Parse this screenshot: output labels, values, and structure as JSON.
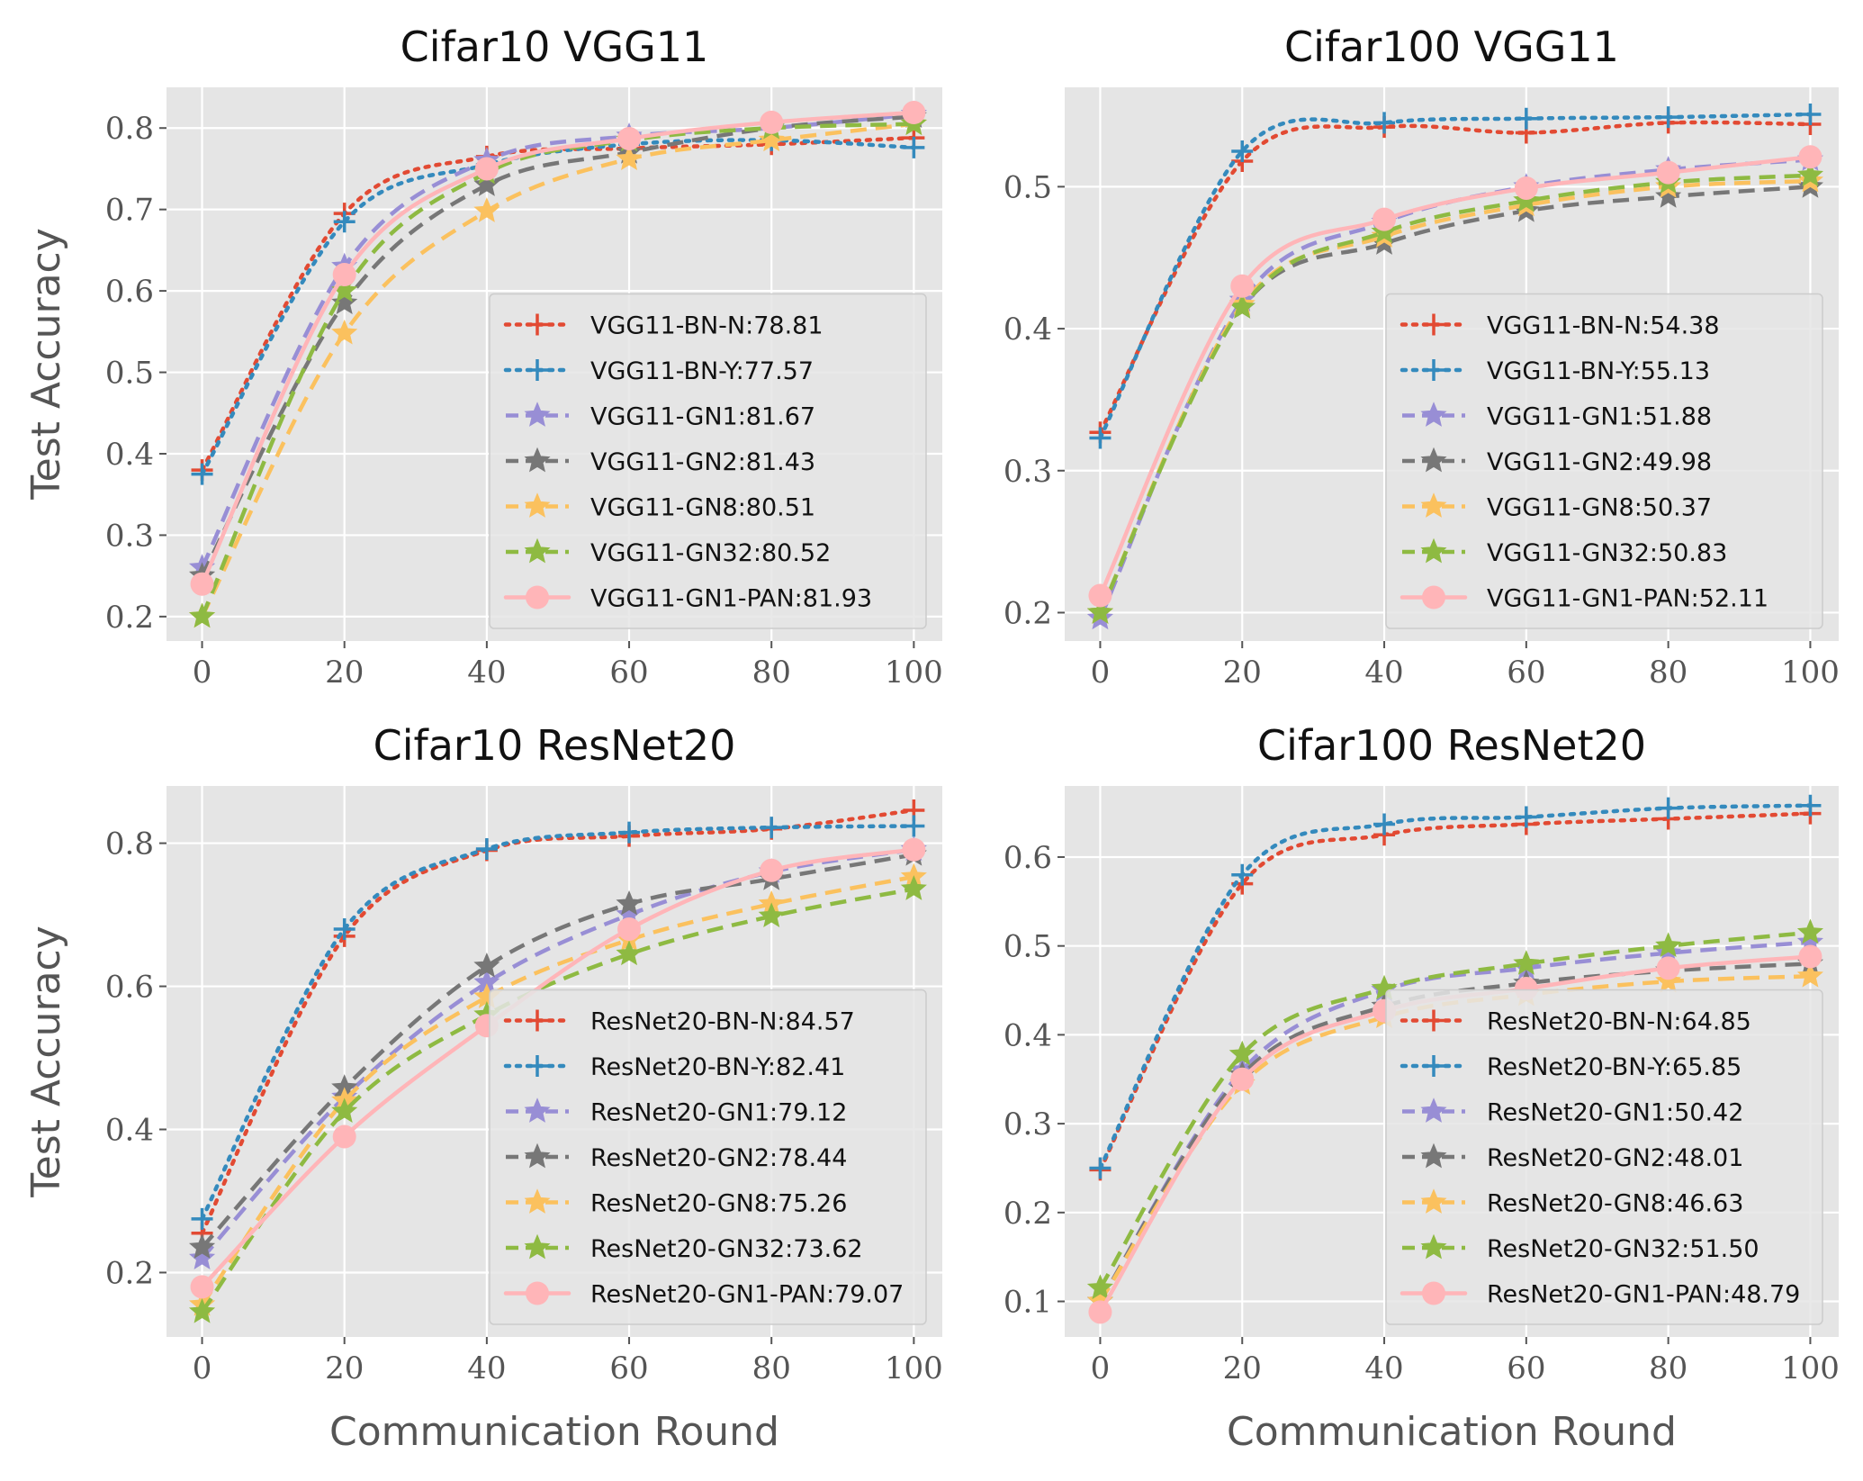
{
  "colors": {
    "BN-N": "#E24A33",
    "BN-Y": "#348ABD",
    "GN1": "#988ED5",
    "GN2": "#777777",
    "GN8": "#FBC15E",
    "GN32": "#8EBA42",
    "GN1-PAN": "#FFB5B8",
    "plot_background": "#E5E5E5",
    "grid": "#FFFFFF"
  },
  "chart_data": [
    {
      "type": "line",
      "title": "Cifar10 VGG11",
      "xlabel": "",
      "ylabel": "Test Accuracy",
      "xlim": [
        -5,
        104
      ],
      "ylim": [
        0.17,
        0.85
      ],
      "xticks": [
        0,
        20,
        40,
        60,
        80,
        100
      ],
      "xtick_labels": [
        "0",
        "20",
        "40",
        "60",
        "80",
        "100"
      ],
      "yticks": [
        0.2,
        0.3,
        0.4,
        0.5,
        0.6,
        0.7,
        0.8
      ],
      "ytick_labels": [
        "0.2",
        "0.3",
        "0.4",
        "0.5",
        "0.6",
        "0.7",
        "0.8"
      ],
      "grid": true,
      "legend_position": "lower-right",
      "x": [
        0,
        20,
        40,
        60,
        80,
        100
      ],
      "series": [
        {
          "name": "VGG11-BN-N:78.81",
          "key": "BN-N",
          "values": [
            0.38,
            0.695,
            0.765,
            0.775,
            0.78,
            0.788
          ]
        },
        {
          "name": "VGG11-BN-Y:77.57",
          "key": "BN-Y",
          "values": [
            0.375,
            0.685,
            0.755,
            0.78,
            0.785,
            0.776
          ]
        },
        {
          "name": "VGG11-GN1:81.67",
          "key": "GN1",
          "values": [
            0.26,
            0.63,
            0.76,
            0.79,
            0.8,
            0.817
          ]
        },
        {
          "name": "VGG11-GN2:81.43",
          "key": "GN2",
          "values": [
            0.25,
            0.585,
            0.73,
            0.77,
            0.8,
            0.814
          ]
        },
        {
          "name": "VGG11-GN8:80.51",
          "key": "GN8",
          "values": [
            0.2,
            0.548,
            0.698,
            0.762,
            0.785,
            0.805
          ]
        },
        {
          "name": "VGG11-GN32:80.52",
          "key": "GN32",
          "values": [
            0.2,
            0.6,
            0.745,
            0.785,
            0.8,
            0.805
          ]
        },
        {
          "name": "VGG11-GN1-PAN:81.93",
          "key": "GN1-PAN",
          "values": [
            0.24,
            0.62,
            0.75,
            0.787,
            0.807,
            0.819
          ]
        }
      ]
    },
    {
      "type": "line",
      "title": "Cifar100 VGG11",
      "xlabel": "",
      "ylabel": "",
      "xlim": [
        -5,
        104
      ],
      "ylim": [
        0.18,
        0.57
      ],
      "xticks": [
        0,
        20,
        40,
        60,
        80,
        100
      ],
      "xtick_labels": [
        "0",
        "20",
        "40",
        "60",
        "80",
        "100"
      ],
      "yticks": [
        0.2,
        0.3,
        0.4,
        0.5
      ],
      "ytick_labels": [
        "0.2",
        "0.3",
        "0.4",
        "0.5"
      ],
      "grid": true,
      "legend_position": "lower-right",
      "x": [
        0,
        20,
        40,
        60,
        80,
        100
      ],
      "series": [
        {
          "name": "VGG11-BN-N:54.38",
          "key": "BN-N",
          "values": [
            0.327,
            0.518,
            0.542,
            0.538,
            0.545,
            0.544
          ]
        },
        {
          "name": "VGG11-BN-Y:55.13",
          "key": "BN-Y",
          "values": [
            0.323,
            0.525,
            0.545,
            0.548,
            0.549,
            0.551
          ]
        },
        {
          "name": "VGG11-GN1:51.88",
          "key": "GN1",
          "values": [
            0.196,
            0.42,
            0.475,
            0.5,
            0.512,
            0.519
          ]
        },
        {
          "name": "VGG11-GN2:49.98",
          "key": "GN2",
          "values": [
            0.2,
            0.415,
            0.46,
            0.483,
            0.493,
            0.5
          ]
        },
        {
          "name": "VGG11-GN8:50.37",
          "key": "GN8",
          "values": [
            0.2,
            0.417,
            0.465,
            0.487,
            0.5,
            0.504
          ]
        },
        {
          "name": "VGG11-GN32:50.83",
          "key": "GN32",
          "values": [
            0.2,
            0.415,
            0.468,
            0.49,
            0.503,
            0.508
          ]
        },
        {
          "name": "VGG11-GN1-PAN:52.11",
          "key": "GN1-PAN",
          "values": [
            0.212,
            0.43,
            0.477,
            0.499,
            0.51,
            0.521
          ]
        }
      ]
    },
    {
      "type": "line",
      "title": "Cifar10 ResNet20",
      "xlabel": "Communication Round",
      "ylabel": "Test Accuracy",
      "xlim": [
        -5,
        104
      ],
      "ylim": [
        0.11,
        0.88
      ],
      "xticks": [
        0,
        20,
        40,
        60,
        80,
        100
      ],
      "xtick_labels": [
        "0",
        "20",
        "40",
        "60",
        "80",
        "100"
      ],
      "yticks": [
        0.2,
        0.4,
        0.6,
        0.8
      ],
      "ytick_labels": [
        "0.2",
        "0.4",
        "0.6",
        "0.8"
      ],
      "grid": true,
      "legend_position": "lower-right",
      "x": [
        0,
        20,
        40,
        60,
        80,
        100
      ],
      "series": [
        {
          "name": "ResNet20-BN-N:84.57",
          "key": "BN-N",
          "values": [
            0.255,
            0.67,
            0.79,
            0.81,
            0.82,
            0.846
          ]
        },
        {
          "name": "ResNet20-BN-Y:82.41",
          "key": "BN-Y",
          "values": [
            0.275,
            0.68,
            0.792,
            0.815,
            0.822,
            0.824
          ]
        },
        {
          "name": "ResNet20-GN1:79.12",
          "key": "GN1",
          "values": [
            0.22,
            0.445,
            0.605,
            0.7,
            0.76,
            0.791
          ]
        },
        {
          "name": "ResNet20-GN2:78.44",
          "key": "GN2",
          "values": [
            0.235,
            0.458,
            0.628,
            0.715,
            0.75,
            0.784
          ]
        },
        {
          "name": "ResNet20-GN8:75.26",
          "key": "GN8",
          "values": [
            0.155,
            0.44,
            0.585,
            0.665,
            0.715,
            0.753
          ]
        },
        {
          "name": "ResNet20-GN32:73.62",
          "key": "GN32",
          "values": [
            0.145,
            0.425,
            0.56,
            0.645,
            0.698,
            0.736
          ]
        },
        {
          "name": "ResNet20-GN1-PAN:79.07",
          "key": "GN1-PAN",
          "values": [
            0.18,
            0.39,
            0.545,
            0.68,
            0.762,
            0.791
          ]
        }
      ]
    },
    {
      "type": "line",
      "title": "Cifar100 ResNet20",
      "xlabel": "Communication Round",
      "ylabel": "",
      "xlim": [
        -5,
        104
      ],
      "ylim": [
        0.06,
        0.68
      ],
      "xticks": [
        0,
        20,
        40,
        60,
        80,
        100
      ],
      "xtick_labels": [
        "0",
        "20",
        "40",
        "60",
        "80",
        "100"
      ],
      "yticks": [
        0.1,
        0.2,
        0.3,
        0.4,
        0.5,
        0.6
      ],
      "ytick_labels": [
        "0.1",
        "0.2",
        "0.3",
        "0.4",
        "0.5",
        "0.6"
      ],
      "grid": true,
      "legend_position": "lower-right",
      "x": [
        0,
        20,
        40,
        60,
        80,
        100
      ],
      "series": [
        {
          "name": "ResNet20-BN-N:64.85",
          "key": "BN-N",
          "values": [
            0.248,
            0.57,
            0.625,
            0.637,
            0.643,
            0.649
          ]
        },
        {
          "name": "ResNet20-BN-Y:65.85",
          "key": "BN-Y",
          "values": [
            0.25,
            0.58,
            0.637,
            0.645,
            0.655,
            0.658
          ]
        },
        {
          "name": "ResNet20-GN1:50.42",
          "key": "GN1",
          "values": [
            0.1,
            0.36,
            0.45,
            0.475,
            0.492,
            0.504
          ]
        },
        {
          "name": "ResNet20-GN2:48.01",
          "key": "GN2",
          "values": [
            0.1,
            0.355,
            0.432,
            0.458,
            0.472,
            0.48
          ]
        },
        {
          "name": "ResNet20-GN8:46.63",
          "key": "GN8",
          "values": [
            0.1,
            0.345,
            0.42,
            0.445,
            0.46,
            0.466
          ]
        },
        {
          "name": "ResNet20-GN32:51.50",
          "key": "GN32",
          "values": [
            0.115,
            0.378,
            0.452,
            0.48,
            0.5,
            0.515
          ]
        },
        {
          "name": "ResNet20-GN1-PAN:48.79",
          "key": "GN1-PAN",
          "values": [
            0.088,
            0.35,
            0.427,
            0.452,
            0.475,
            0.488
          ]
        }
      ]
    }
  ]
}
